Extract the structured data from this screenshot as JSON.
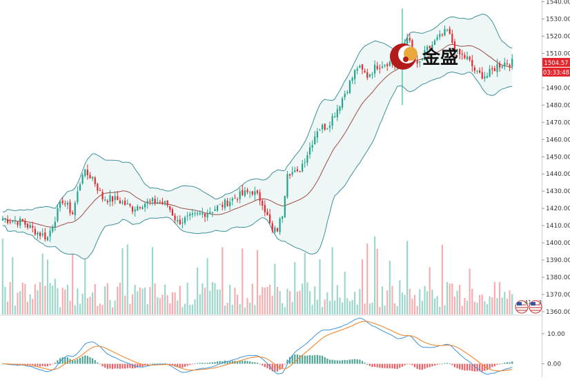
{
  "chart_data": {
    "type": "candlestick",
    "title": "",
    "price_axis": {
      "ticks": [
        "1540.00",
        "1530.00",
        "1520.00",
        "1510.00",
        "1500.00",
        "1490.00",
        "1480.00",
        "1470.00",
        "1460.00",
        "1450.00",
        "1440.00",
        "1430.00",
        "1420.00",
        "1410.00",
        "1400.00",
        "1390.00",
        "1380.00",
        "1370.00",
        "1360.00"
      ],
      "ylim": [
        1358,
        1541
      ]
    },
    "current_price": "1504.57",
    "countdown": "03:33:48",
    "macd_axis": {
      "ticks": [
        "10.00",
        "0.00"
      ],
      "ylim": [
        -4,
        15
      ]
    },
    "anchors": [
      [
        0,
        1414
      ],
      [
        8,
        1412
      ],
      [
        14,
        1406
      ],
      [
        18,
        1403
      ],
      [
        20,
        1411
      ],
      [
        24,
        1425
      ],
      [
        28,
        1417
      ],
      [
        32,
        1441
      ],
      [
        36,
        1438
      ],
      [
        40,
        1426
      ],
      [
        46,
        1425
      ],
      [
        52,
        1420
      ],
      [
        56,
        1423
      ],
      [
        62,
        1424
      ],
      [
        66,
        1422
      ],
      [
        70,
        1412
      ],
      [
        76,
        1415
      ],
      [
        82,
        1418
      ],
      [
        88,
        1422
      ],
      [
        94,
        1427
      ],
      [
        100,
        1430
      ],
      [
        104,
        1424
      ],
      [
        108,
        1406
      ],
      [
        110,
        1408
      ],
      [
        112,
        1417
      ],
      [
        114,
        1442
      ],
      [
        118,
        1440
      ],
      [
        122,
        1452
      ],
      [
        126,
        1466
      ],
      [
        130,
        1468
      ],
      [
        134,
        1478
      ],
      [
        138,
        1490
      ],
      [
        142,
        1502
      ],
      [
        146,
        1497
      ],
      [
        150,
        1503
      ],
      [
        154,
        1505
      ],
      [
        158,
        1503
      ],
      [
        162,
        1521
      ],
      [
        164,
        1510
      ],
      [
        166,
        1502
      ],
      [
        170,
        1512
      ],
      [
        174,
        1518
      ],
      [
        178,
        1523
      ],
      [
        182,
        1510
      ],
      [
        186,
        1507
      ],
      [
        190,
        1498
      ],
      [
        194,
        1497
      ],
      [
        198,
        1503
      ],
      [
        202,
        1505
      ],
      [
        204,
        1504.6
      ]
    ],
    "volume_scale_max": 100,
    "volume_hint": "relative volume (0-100) per bar, green = up, red = down",
    "bands": "Bollinger bands with middle moving average",
    "macd": "MACD line (blue), signal line (orange), histogram (green positive / red negative)",
    "colors": {
      "up": "#1fa38a",
      "down": "#e3272e",
      "band_fill": "#eef7f6",
      "band_line": "#3d8f99",
      "ma": "#9c4a42",
      "macd": "#3b93e0",
      "signal": "#f0862e"
    }
  },
  "brand": {
    "label": "金盛",
    "logo": "jinsheng-logo"
  },
  "badges": [
    {
      "count": "41",
      "icon": "us-flag-icon"
    },
    {
      "count": "3",
      "icon": "us-flag-icon"
    }
  ]
}
